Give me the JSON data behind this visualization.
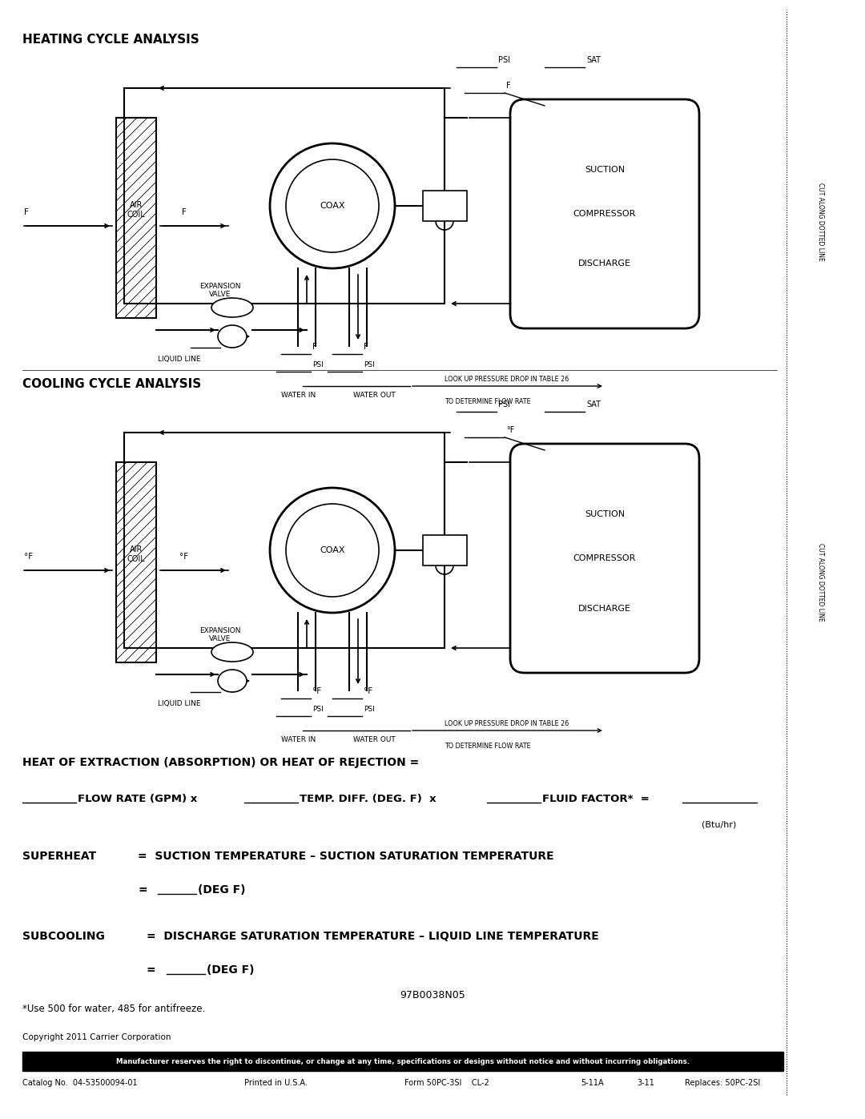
{
  "title_heating": "HEATING CYCLE ANALYSIS",
  "title_cooling": "COOLING CYCLE ANALYSIS",
  "bg_color": "#ffffff",
  "line_color": "#000000",
  "page_width": 10.8,
  "page_height": 13.97,
  "footer_disclaimer": "Manufacturer reserves the right to discontinue, or change at any time, specifications or designs without notice and without incurring obligations.",
  "footer_catalog": "Catalog No.  04-53500094-01",
  "footer_printed": "Printed in U.S.A.",
  "footer_form": "Form 50PC-3SI    CL-2",
  "footer_version": "5-11A",
  "footer_rev": "3-11",
  "footer_replaces": "Replaces: 50PC-2SI",
  "copyright": "Copyright 2011 Carrier Corporation",
  "part_number": "97B0038N05",
  "footnote": "*Use 500 for water, 485 for antifreeze.",
  "cutline1": "CUT ALONG DOTTED LINE",
  "cutline2": "CUT ALONG DOTTED LINE"
}
